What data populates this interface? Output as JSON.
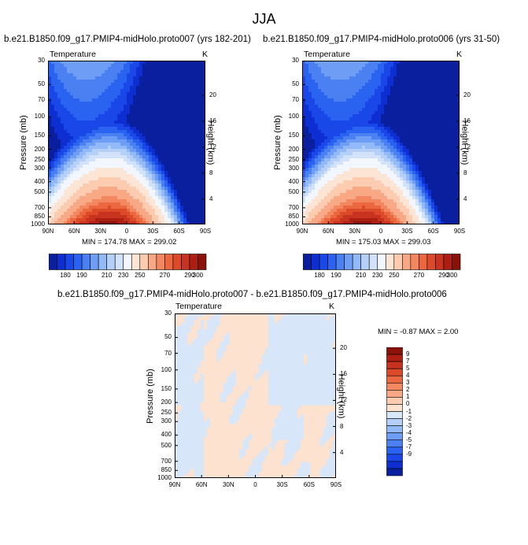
{
  "figure": {
    "title": "JJA"
  },
  "palette": {
    "full": [
      "#0a1f9e",
      "#0d2ed0",
      "#1947e8",
      "#2a63f0",
      "#4a80f2",
      "#6d9df5",
      "#93baf8",
      "#b4cff8",
      "#d2e2fa",
      "#f2f6fe",
      "#fde5d6",
      "#fccbb0",
      "#f9a886",
      "#f38760",
      "#eb673f",
      "#dc4a2a",
      "#c83320",
      "#ad1e13",
      "#8b1208"
    ],
    "diff": [
      "#0a1f9e",
      "#0d2ed0",
      "#1947e8",
      "#2a63f0",
      "#4a80f2",
      "#6d9df5",
      "#93baf8",
      "#b4cff8",
      "#d7e6f8",
      "#fde2d0",
      "#fccbb0",
      "#f9a886",
      "#f38760",
      "#eb673f",
      "#dc4a2a",
      "#c83320",
      "#ad1e13",
      "#8b1208"
    ]
  },
  "chart_data": [
    {
      "type": "heatmap",
      "title": "b.e21.B1850.f09_g17.PMIP4-midHolo.proto007 (yrs 182-201)",
      "left_label": "Temperature",
      "right_label": "K",
      "xlabel": "",
      "ylabel": "Pressure (mb)",
      "right_axis_label": "Height (km)",
      "x_ticks": [
        "90N",
        "60N",
        "30N",
        "0",
        "30S",
        "60S",
        "90S"
      ],
      "y_ticks": [
        "30",
        "50",
        "70",
        "100",
        "150",
        "200",
        "250",
        "300",
        "400",
        "500",
        "700",
        "850",
        "1000"
      ],
      "height_ticks": [
        "20",
        "16",
        "12",
        "8",
        "4"
      ],
      "min_max_text": "MIN = 174.78  MAX = 299.02",
      "min": 174.78,
      "max": 299.02,
      "colorbar_ticks": [
        "180",
        "190",
        "210",
        "230",
        "250",
        "270",
        "290",
        "300"
      ]
    },
    {
      "type": "heatmap",
      "title": "b.e21.B1850.f09_g17.PMIP4-midHolo.proto006 (yrs 31-50)",
      "left_label": "Temperature",
      "right_label": "K",
      "xlabel": "",
      "ylabel": "Pressure (mb)",
      "right_axis_label": "Height (km)",
      "x_ticks": [
        "90N",
        "60N",
        "30N",
        "0",
        "30S",
        "60S",
        "90S"
      ],
      "y_ticks": [
        "30",
        "50",
        "70",
        "100",
        "150",
        "200",
        "250",
        "300",
        "400",
        "500",
        "700",
        "850",
        "1000"
      ],
      "height_ticks": [
        "20",
        "16",
        "12",
        "8",
        "4"
      ],
      "min_max_text": "MIN = 175.03  MAX = 299.03",
      "min": 175.03,
      "max": 299.03,
      "colorbar_ticks": [
        "180",
        "190",
        "210",
        "230",
        "250",
        "270",
        "290",
        "300"
      ]
    },
    {
      "type": "heatmap",
      "title": "b.e21.B1850.f09_g17.PMIP4-midHolo.proto007 - b.e21.B1850.f09_g17.PMIP4-midHolo.proto006",
      "left_label": "Temperature",
      "right_label": "K",
      "xlabel": "",
      "ylabel": "Pressure (mb)",
      "right_axis_label": "Height (km)",
      "x_ticks": [
        "90N",
        "60N",
        "30N",
        "0",
        "30S",
        "60S",
        "90S"
      ],
      "y_ticks": [
        "30",
        "50",
        "70",
        "100",
        "150",
        "200",
        "250",
        "300",
        "400",
        "500",
        "700",
        "850",
        "1000"
      ],
      "height_ticks": [
        "20",
        "16",
        "12",
        "8",
        "4"
      ],
      "min_max_text": "MIN =  -0.87  MAX =   2.00",
      "min": -0.87,
      "max": 2.0,
      "colorbar_ticks": [
        "9",
        "7",
        "5",
        "4",
        "3",
        "2",
        "1",
        "0",
        "-1",
        "-2",
        "-3",
        "-4",
        "-5",
        "-7",
        "-9"
      ]
    }
  ]
}
